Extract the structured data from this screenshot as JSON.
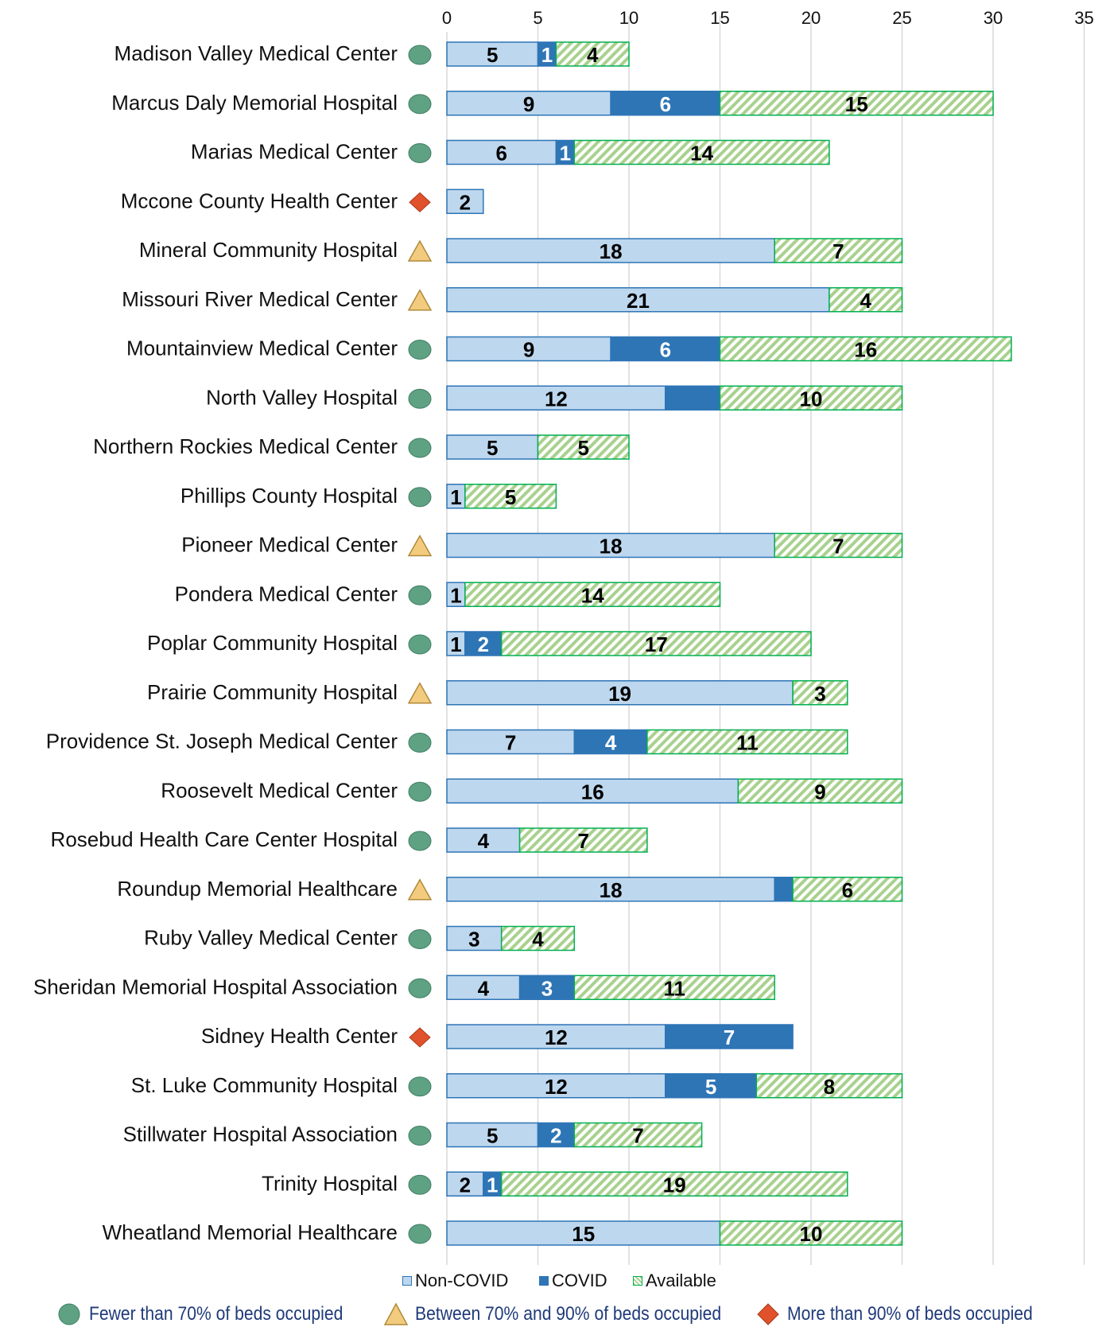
{
  "chart_data": {
    "type": "bar",
    "orientation": "horizontal",
    "stacked": true,
    "title": "",
    "xlabel": "",
    "ylabel": "",
    "xlim": [
      0,
      35
    ],
    "x_ticks": [
      0,
      5,
      10,
      15,
      20,
      25,
      30,
      35
    ],
    "grid": "vertical",
    "legend_position": "bottom",
    "categories": [
      "Madison Valley Medical Center",
      "Marcus Daly Memorial Hospital",
      "Marias Medical Center",
      "Mccone County Health Center",
      "Mineral Community Hospital",
      "Missouri River Medical Center",
      "Mountainview Medical Center",
      "North Valley Hospital",
      "Northern Rockies Medical Center",
      "Phillips County Hospital",
      "Pioneer Medical Center",
      "Pondera Medical Center",
      "Poplar Community Hospital",
      "Prairie Community Hospital",
      "Providence St. Joseph Medical Center",
      "Roosevelt  Medical Center",
      "Rosebud Health Care Center Hospital",
      "Roundup Memorial Healthcare",
      "Ruby Valley Medical Center",
      "Sheridan Memorial Hospital Association",
      "Sidney Health Center",
      "St. Luke Community Hospital",
      "Stillwater Hospital Association",
      "Trinity Hospital",
      "Wheatland Memorial Healthcare"
    ],
    "status": [
      "low",
      "low",
      "low",
      "high",
      "mid",
      "mid",
      "low",
      "low",
      "low",
      "low",
      "mid",
      "low",
      "low",
      "mid",
      "low",
      "low",
      "low",
      "mid",
      "low",
      "low",
      "high",
      "low",
      "low",
      "low",
      "low"
    ],
    "series": [
      {
        "name": "Non-COVID",
        "color": "#bdd7ee",
        "border": "#2e75b6",
        "pattern": "solid",
        "values": [
          5,
          9,
          6,
          2,
          18,
          21,
          9,
          12,
          5,
          1,
          18,
          1,
          1,
          19,
          7,
          16,
          4,
          18,
          3,
          4,
          12,
          12,
          5,
          2,
          15
        ]
      },
      {
        "name": "COVID",
        "color": "#2e75b6",
        "border": "#2e75b6",
        "pattern": "solid",
        "values": [
          1,
          6,
          1,
          0,
          0,
          0,
          6,
          3,
          0,
          0,
          0,
          0,
          2,
          0,
          4,
          0,
          0,
          1,
          0,
          3,
          7,
          5,
          2,
          1,
          0
        ]
      },
      {
        "name": "Available",
        "color": "#a9d18e",
        "border": "#00b050",
        "pattern": "hatch",
        "values": [
          4,
          15,
          14,
          0,
          7,
          4,
          16,
          10,
          5,
          5,
          7,
          14,
          17,
          3,
          11,
          9,
          7,
          6,
          4,
          11,
          0,
          8,
          7,
          19,
          10
        ]
      }
    ],
    "data_labels": [
      [
        "5",
        "1",
        "4"
      ],
      [
        "9",
        "6",
        "15"
      ],
      [
        "6",
        "1",
        "14"
      ],
      [
        "2",
        "",
        ""
      ],
      [
        "18",
        "",
        "7"
      ],
      [
        "21",
        "",
        "4"
      ],
      [
        "9",
        "6",
        "16"
      ],
      [
        "12",
        "",
        "10"
      ],
      [
        "5",
        "",
        "5"
      ],
      [
        "1",
        "",
        "5"
      ],
      [
        "18",
        "",
        "7"
      ],
      [
        "1",
        "",
        "14"
      ],
      [
        "1",
        "2",
        "17"
      ],
      [
        "19",
        "",
        "3"
      ],
      [
        "7",
        "4",
        "11"
      ],
      [
        "16",
        "",
        "9"
      ],
      [
        "4",
        "",
        "7"
      ],
      [
        "18",
        "",
        "6"
      ],
      [
        "3",
        "",
        "4"
      ],
      [
        "4",
        "3",
        "11"
      ],
      [
        "12",
        "7",
        ""
      ],
      [
        "12",
        "5",
        "8"
      ],
      [
        "5",
        "2",
        "7"
      ],
      [
        "2",
        "1",
        "19"
      ],
      [
        "15",
        "",
        "10"
      ]
    ],
    "status_legend": [
      {
        "key": "low",
        "label": "Fewer than 70% of beds occupied",
        "shape": "circle",
        "color": "#5fa283"
      },
      {
        "key": "mid",
        "label": "Between 70% and 90% of beds occupied",
        "shape": "triangle",
        "color": "#f2cb7f"
      },
      {
        "key": "high",
        "label": "More than 90% of beds occupied",
        "shape": "diamond",
        "color": "#e0522b"
      }
    ]
  }
}
